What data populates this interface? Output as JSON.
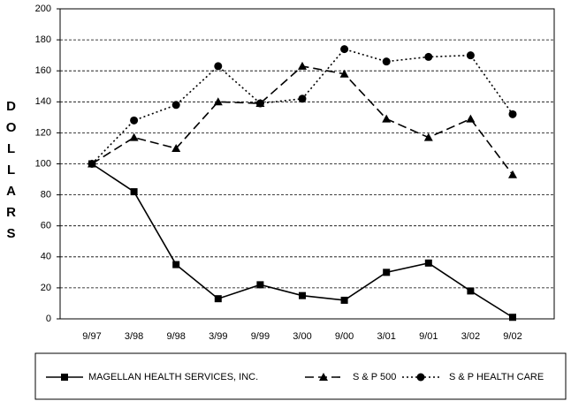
{
  "chart_data": {
    "type": "line",
    "y_label": "DOLLARS",
    "categories": [
      "9/97",
      "3/98",
      "9/98",
      "3/99",
      "9/99",
      "3/00",
      "9/00",
      "3/01",
      "9/01",
      "3/02",
      "9/02"
    ],
    "series": [
      {
        "name": "MAGELLAN HEALTH SERVICES, INC.",
        "color": "#000000",
        "dash": "solid",
        "marker": "square",
        "values": [
          100,
          82,
          35,
          13,
          22,
          15,
          12,
          30,
          36,
          18,
          1
        ]
      },
      {
        "name": "S & P 500",
        "color": "#000000",
        "dash": "dashed",
        "marker": "triangle",
        "values": [
          100,
          117,
          110,
          140,
          139,
          163,
          158,
          129,
          117,
          129,
          93
        ]
      },
      {
        "name": "S & P HEALTH CARE",
        "color": "#000000",
        "dash": "dotted",
        "marker": "circle",
        "values": [
          100,
          128,
          138,
          163,
          139,
          142,
          174,
          166,
          169,
          170,
          132
        ]
      }
    ],
    "ylim": [
      0,
      200
    ],
    "yticks": [
      0,
      20,
      40,
      60,
      80,
      100,
      120,
      140,
      160,
      180,
      200
    ],
    "grid": true,
    "legend": "bottom"
  }
}
